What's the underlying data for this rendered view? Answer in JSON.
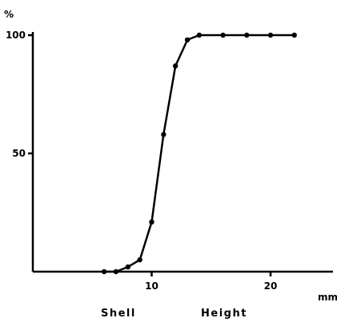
{
  "chart_data": {
    "type": "line",
    "title": "",
    "ylabel_unit": "%",
    "xlabel_unit": "mm",
    "xlabel_words": [
      "Shell",
      "Height"
    ],
    "xlim": [
      0,
      25
    ],
    "ylim": [
      0,
      100
    ],
    "x_ticks": [
      10,
      20
    ],
    "y_ticks": [
      50,
      100
    ],
    "grid": false,
    "legend": "none",
    "series": [
      {
        "x": [
          6,
          7,
          8,
          9,
          10,
          11,
          12,
          13,
          14,
          16,
          18,
          20,
          22
        ],
        "y": [
          0,
          0,
          2,
          5,
          21,
          58,
          87,
          98,
          100,
          100,
          100,
          100,
          100
        ]
      }
    ],
    "colors": {
      "line": "#000000",
      "axis": "#000000"
    }
  }
}
